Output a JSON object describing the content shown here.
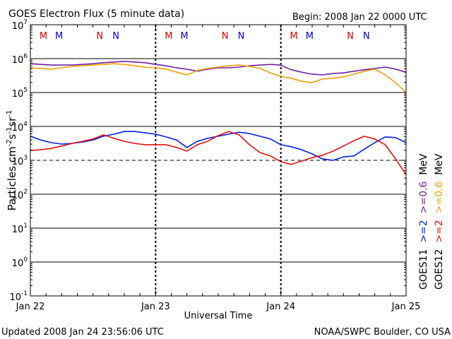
{
  "chart_data": {
    "type": "line",
    "title": "GOES Electron Flux (5 minute data)",
    "begin_label": "Begin: 2008 Jan 22 0000 UTC",
    "xlabel": "Universal Time",
    "ylabel_parts": [
      "Particles cm",
      "-2",
      "s",
      "-1",
      "sr",
      "-1"
    ],
    "x_unit": "hours since 2008 Jan 22 0000 UTC",
    "xlim": [
      0,
      72
    ],
    "ylim_log10": [
      -1,
      7
    ],
    "x_ticks": [
      {
        "hour": 0,
        "label": "Jan 22"
      },
      {
        "hour": 24,
        "label": "Jan 23"
      },
      {
        "hour": 48,
        "label": "Jan 24"
      },
      {
        "hour": 72,
        "label": "Jan 25"
      }
    ],
    "y_ticks": [
      {
        "exp": 7,
        "base": "10",
        "sup": "7"
      },
      {
        "exp": 6,
        "base": "10",
        "sup": "6"
      },
      {
        "exp": 5,
        "base": "10",
        "sup": "5"
      },
      {
        "exp": 4,
        "base": "10",
        "sup": "4"
      },
      {
        "exp": 3,
        "base": "10",
        "sup": "3"
      },
      {
        "exp": 2,
        "base": "10",
        "sup": "2"
      },
      {
        "exp": 1,
        "base": "10",
        "sup": "1"
      },
      {
        "exp": 0,
        "base": "10",
        "sup": "0"
      },
      {
        "exp": -1,
        "base": "10",
        "sup": "-1"
      }
    ],
    "threshold_log10": 3,
    "markers": [
      {
        "hour": 2.5,
        "label": "M",
        "color": "#e00000"
      },
      {
        "hour": 5.5,
        "label": "M",
        "color": "#0000e0"
      },
      {
        "hour": 13.3,
        "label": "N",
        "color": "#e00000"
      },
      {
        "hour": 16.4,
        "label": "N",
        "color": "#0000e0"
      },
      {
        "hour": 26.5,
        "label": "M",
        "color": "#e00000"
      },
      {
        "hour": 29.5,
        "label": "M",
        "color": "#0000e0"
      },
      {
        "hour": 37.3,
        "label": "N",
        "color": "#e00000"
      },
      {
        "hour": 40.4,
        "label": "N",
        "color": "#0000e0"
      },
      {
        "hour": 50.5,
        "label": "M",
        "color": "#e00000"
      },
      {
        "hour": 53.5,
        "label": "M",
        "color": "#0000e0"
      },
      {
        "hour": 61.3,
        "label": "N",
        "color": "#e00000"
      },
      {
        "hour": 64.4,
        "label": "N",
        "color": "#0000e0"
      }
    ],
    "sample_hours_step": 2,
    "series": [
      {
        "name": "GOES11 >=0.6 MeV",
        "color": "#7020a0",
        "log10_values": [
          5.85,
          5.83,
          5.81,
          5.81,
          5.81,
          5.83,
          5.85,
          5.88,
          5.9,
          5.92,
          5.9,
          5.88,
          5.83,
          5.79,
          5.73,
          5.69,
          5.63,
          5.69,
          5.73,
          5.73,
          5.75,
          5.79,
          5.81,
          5.83,
          5.81,
          5.67,
          5.6,
          5.54,
          5.52,
          5.56,
          5.58,
          5.63,
          5.67,
          5.71,
          5.75,
          5.69,
          5.6
        ]
      },
      {
        "name": "GOES12 >=0.6 MeV",
        "color": "#f0a000",
        "log10_values": [
          5.73,
          5.71,
          5.69,
          5.73,
          5.77,
          5.79,
          5.81,
          5.83,
          5.85,
          5.83,
          5.79,
          5.75,
          5.73,
          5.69,
          5.6,
          5.52,
          5.65,
          5.71,
          5.75,
          5.79,
          5.81,
          5.77,
          5.71,
          5.58,
          5.48,
          5.42,
          5.33,
          5.29,
          5.4,
          5.42,
          5.46,
          5.54,
          5.63,
          5.69,
          5.52,
          5.29,
          5.0
        ]
      },
      {
        "name": "GOES11 >=2 MeV",
        "color": "#0020e0",
        "log10_values": [
          3.71,
          3.6,
          3.52,
          3.48,
          3.5,
          3.54,
          3.6,
          3.71,
          3.77,
          3.85,
          3.85,
          3.81,
          3.77,
          3.69,
          3.6,
          3.38,
          3.56,
          3.65,
          3.71,
          3.77,
          3.83,
          3.79,
          3.71,
          3.63,
          3.46,
          3.4,
          3.31,
          3.19,
          3.04,
          3.0,
          3.1,
          3.13,
          3.33,
          3.52,
          3.69,
          3.67,
          3.52
        ]
      },
      {
        "name": "GOES12 >=2 MeV",
        "color": "#e01010",
        "log10_values": [
          3.29,
          3.31,
          3.35,
          3.42,
          3.5,
          3.56,
          3.63,
          3.75,
          3.65,
          3.56,
          3.5,
          3.46,
          3.46,
          3.46,
          3.38,
          3.27,
          3.46,
          3.56,
          3.73,
          3.85,
          3.75,
          3.46,
          3.23,
          3.13,
          2.96,
          2.88,
          2.98,
          3.08,
          3.15,
          3.27,
          3.42,
          3.58,
          3.71,
          3.63,
          3.46,
          3.04,
          2.58
        ]
      }
    ],
    "legend": {
      "placement": "right, rotated vertical",
      "columns": [
        {
          "parts": [
            {
              "text": "GOES11",
              "color": "#000000"
            },
            {
              "text": ">=2",
              "color": "#0020e0"
            },
            {
              "text": ">=0.6",
              "color": "#7020a0"
            },
            {
              "text": "MeV",
              "color": "#000000"
            }
          ]
        },
        {
          "parts": [
            {
              "text": "GOES12",
              "color": "#000000"
            },
            {
              "text": ">=2",
              "color": "#e01010"
            },
            {
              "text": ">=0.6",
              "color": "#f0a000"
            },
            {
              "text": "MeV",
              "color": "#000000"
            }
          ]
        }
      ]
    },
    "grid": "horizontal decade lines; dashed vertical day lines"
  },
  "footer": {
    "updated": "Updated 2008 Jan 24 23:56:06 UTC",
    "source": "NOAA/SWPC Boulder, CO USA"
  }
}
